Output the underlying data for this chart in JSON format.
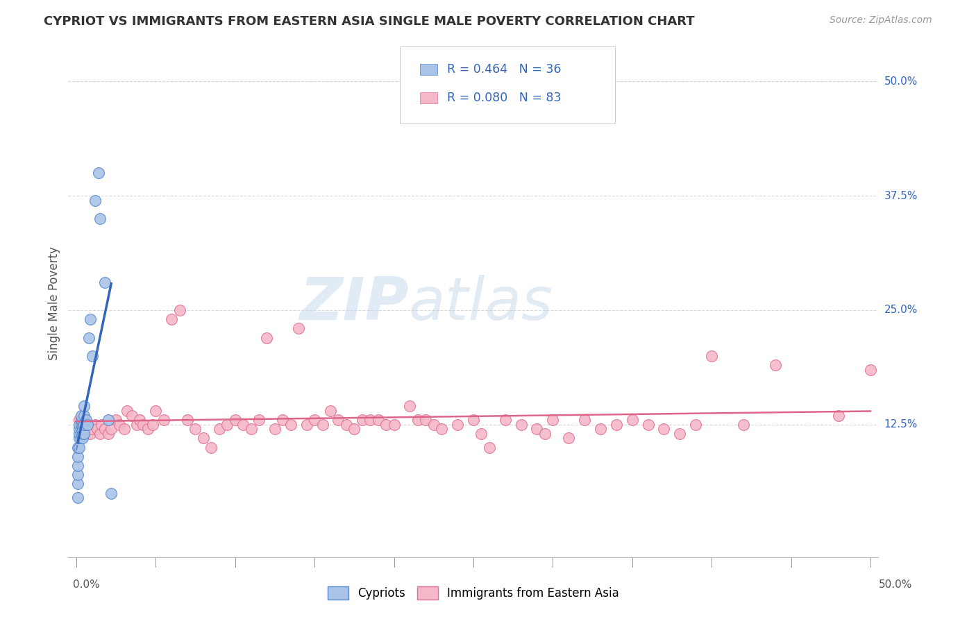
{
  "title": "CYPRIOT VS IMMIGRANTS FROM EASTERN ASIA SINGLE MALE POVERTY CORRELATION CHART",
  "source": "Source: ZipAtlas.com",
  "ylabel": "Single Male Poverty",
  "xlim": [
    -0.005,
    0.505
  ],
  "ylim": [
    -0.02,
    0.535
  ],
  "yticks_right": [
    0.125,
    0.25,
    0.375,
    0.5
  ],
  "yticklabels_right": [
    "12.5%",
    "25.0%",
    "37.5%",
    "50.0%"
  ],
  "grid_color": "#d8d8d8",
  "background_color": "#ffffff",
  "cypriot_color": "#aac4e8",
  "cypriot_edge_color": "#5588cc",
  "eastern_asia_color": "#f5b8c8",
  "eastern_asia_edge_color": "#e07090",
  "trend_blue_color": "#3366bb",
  "trend_pink_color": "#dd6688",
  "legend_label_blue": "Cypriots",
  "legend_label_pink": "Immigrants from Eastern Asia",
  "watermark_ZIP": "ZIP",
  "watermark_atlas": "atlas",
  "cypriot_x": [
    0.001,
    0.001,
    0.001,
    0.001,
    0.001,
    0.001,
    0.002,
    0.002,
    0.002,
    0.002,
    0.002,
    0.003,
    0.003,
    0.003,
    0.003,
    0.003,
    0.003,
    0.004,
    0.004,
    0.004,
    0.004,
    0.005,
    0.005,
    0.005,
    0.005,
    0.006,
    0.007,
    0.008,
    0.009,
    0.01,
    0.012,
    0.014,
    0.015,
    0.018,
    0.02,
    0.022
  ],
  "cypriot_y": [
    0.045,
    0.06,
    0.07,
    0.08,
    0.09,
    0.1,
    0.1,
    0.11,
    0.115,
    0.12,
    0.125,
    0.11,
    0.115,
    0.12,
    0.125,
    0.13,
    0.135,
    0.11,
    0.115,
    0.12,
    0.125,
    0.115,
    0.125,
    0.135,
    0.145,
    0.13,
    0.125,
    0.22,
    0.24,
    0.2,
    0.37,
    0.4,
    0.35,
    0.28,
    0.13,
    0.05
  ],
  "eastern_asia_x": [
    0.002,
    0.003,
    0.004,
    0.005,
    0.006,
    0.007,
    0.008,
    0.009,
    0.01,
    0.012,
    0.013,
    0.015,
    0.016,
    0.018,
    0.02,
    0.022,
    0.025,
    0.027,
    0.03,
    0.032,
    0.035,
    0.038,
    0.04,
    0.042,
    0.045,
    0.048,
    0.05,
    0.055,
    0.06,
    0.065,
    0.07,
    0.075,
    0.08,
    0.085,
    0.09,
    0.095,
    0.1,
    0.105,
    0.11,
    0.115,
    0.12,
    0.125,
    0.13,
    0.135,
    0.14,
    0.145,
    0.15,
    0.155,
    0.16,
    0.165,
    0.17,
    0.175,
    0.18,
    0.185,
    0.19,
    0.195,
    0.2,
    0.21,
    0.215,
    0.22,
    0.225,
    0.23,
    0.24,
    0.25,
    0.255,
    0.26,
    0.27,
    0.28,
    0.29,
    0.295,
    0.3,
    0.31,
    0.32,
    0.33,
    0.34,
    0.35,
    0.36,
    0.37,
    0.38,
    0.39,
    0.4,
    0.42,
    0.44,
    0.48,
    0.5
  ],
  "eastern_asia_y": [
    0.13,
    0.125,
    0.12,
    0.115,
    0.12,
    0.125,
    0.12,
    0.115,
    0.12,
    0.125,
    0.12,
    0.115,
    0.125,
    0.12,
    0.115,
    0.12,
    0.13,
    0.125,
    0.12,
    0.14,
    0.135,
    0.125,
    0.13,
    0.125,
    0.12,
    0.125,
    0.14,
    0.13,
    0.24,
    0.25,
    0.13,
    0.12,
    0.11,
    0.1,
    0.12,
    0.125,
    0.13,
    0.125,
    0.12,
    0.13,
    0.22,
    0.12,
    0.13,
    0.125,
    0.23,
    0.125,
    0.13,
    0.125,
    0.14,
    0.13,
    0.125,
    0.12,
    0.13,
    0.13,
    0.13,
    0.125,
    0.125,
    0.145,
    0.13,
    0.13,
    0.125,
    0.12,
    0.125,
    0.13,
    0.115,
    0.1,
    0.13,
    0.125,
    0.12,
    0.115,
    0.13,
    0.11,
    0.13,
    0.12,
    0.125,
    0.13,
    0.125,
    0.12,
    0.115,
    0.125,
    0.2,
    0.125,
    0.19,
    0.135,
    0.185
  ]
}
